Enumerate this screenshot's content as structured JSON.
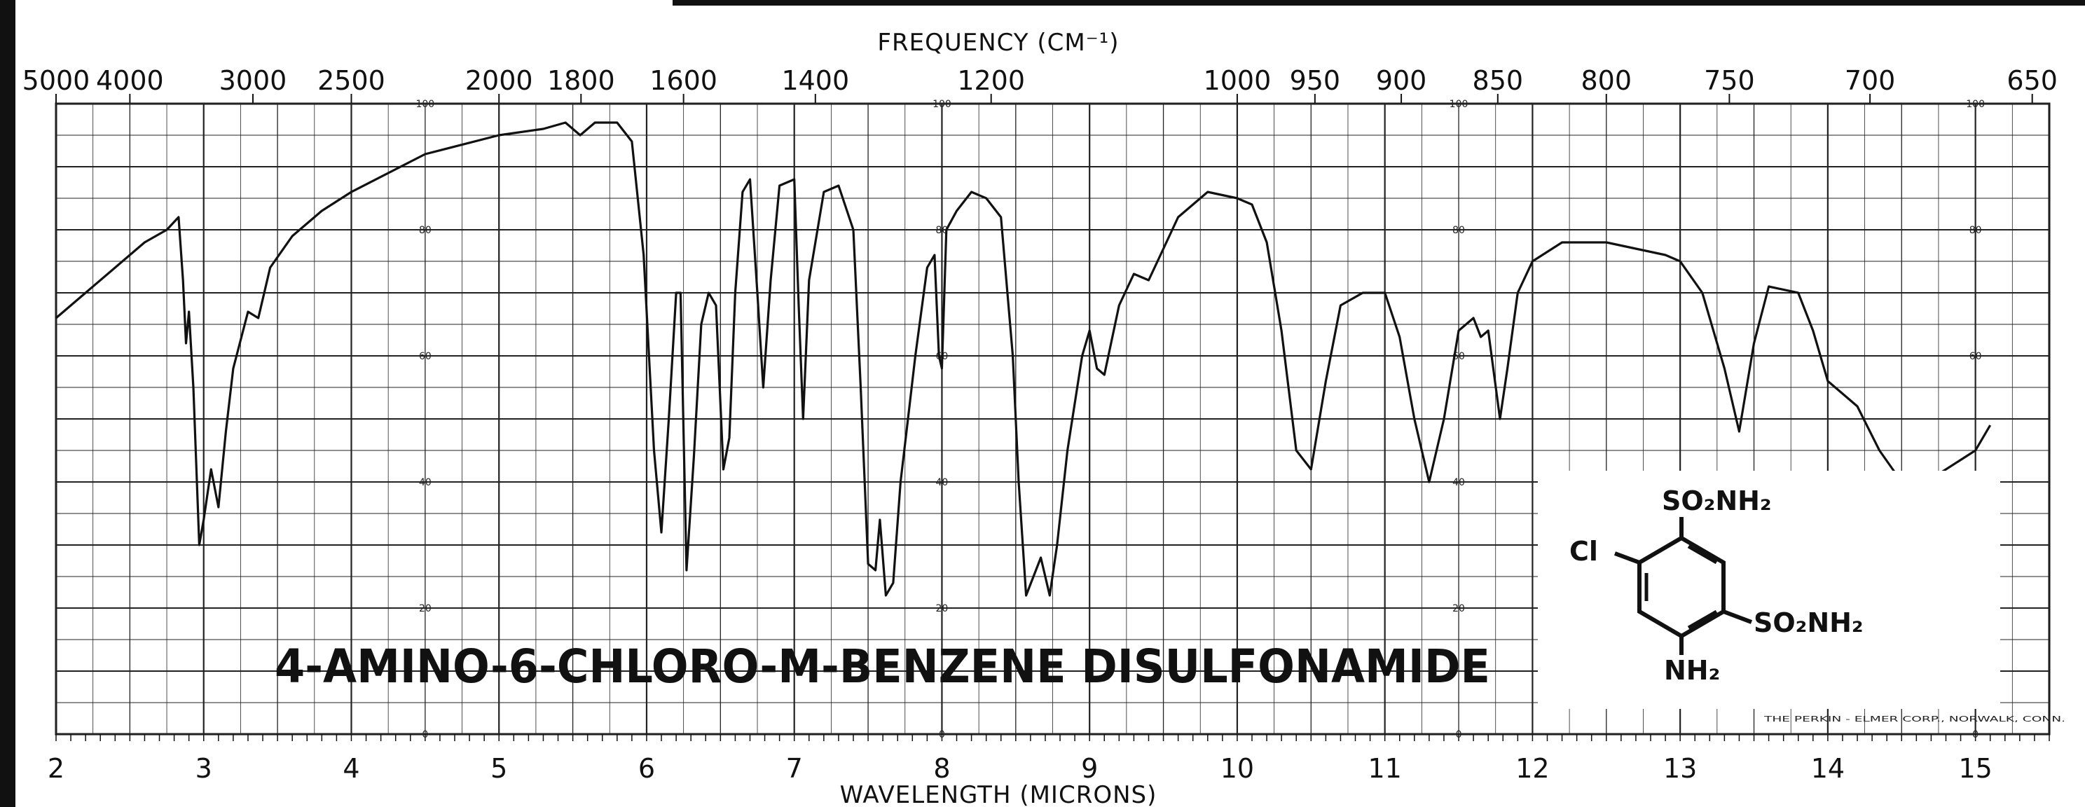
{
  "chart_data": {
    "type": "line",
    "title": "4-AMINO-6-CHLORO-M-BENZENE  DISULFONAMIDE",
    "xlabel": "WAVELENGTH (MICRONS)",
    "x2label": "FREQUENCY (CM⁻¹)",
    "xlim": [
      2,
      15.5
    ],
    "ylim": [
      0,
      100
    ],
    "x_ticks": [
      "2",
      "3",
      "4",
      "5",
      "6",
      "7",
      "8",
      "9",
      "10",
      "11",
      "12",
      "13",
      "14",
      "15"
    ],
    "freq_ticks": [
      "5000",
      "4000",
      "3000",
      "2500",
      "2000",
      "1800",
      "1600",
      "1400",
      "1200",
      "1000",
      "950",
      "900",
      "850",
      "800",
      "750",
      "700",
      "650"
    ],
    "y_ticks": [
      "0",
      "20",
      "40",
      "60",
      "80",
      "100"
    ],
    "series": [
      {
        "values": [
          [
            2.0,
            66
          ],
          [
            2.2,
            70
          ],
          [
            2.4,
            74
          ],
          [
            2.6,
            78
          ],
          [
            2.75,
            80
          ],
          [
            2.83,
            82
          ],
          [
            2.86,
            72
          ],
          [
            2.88,
            62
          ],
          [
            2.9,
            67
          ],
          [
            2.93,
            55
          ],
          [
            2.97,
            30
          ],
          [
            3.0,
            34
          ],
          [
            3.05,
            42
          ],
          [
            3.1,
            36
          ],
          [
            3.15,
            48
          ],
          [
            3.2,
            58
          ],
          [
            3.3,
            67
          ],
          [
            3.37,
            66
          ],
          [
            3.45,
            74
          ],
          [
            3.6,
            79
          ],
          [
            3.8,
            83
          ],
          [
            4.0,
            86
          ],
          [
            4.5,
            92
          ],
          [
            5.0,
            95
          ],
          [
            5.3,
            96
          ],
          [
            5.45,
            97
          ],
          [
            5.55,
            95
          ],
          [
            5.65,
            97
          ],
          [
            5.8,
            97
          ],
          [
            5.9,
            94
          ],
          [
            5.98,
            76
          ],
          [
            6.05,
            45
          ],
          [
            6.1,
            32
          ],
          [
            6.15,
            50
          ],
          [
            6.2,
            70
          ],
          [
            6.23,
            70
          ],
          [
            6.27,
            26
          ],
          [
            6.32,
            44
          ],
          [
            6.37,
            65
          ],
          [
            6.42,
            70
          ],
          [
            6.47,
            68
          ],
          [
            6.52,
            42
          ],
          [
            6.56,
            47
          ],
          [
            6.6,
            70
          ],
          [
            6.65,
            86
          ],
          [
            6.7,
            88
          ],
          [
            6.75,
            70
          ],
          [
            6.79,
            55
          ],
          [
            6.84,
            72
          ],
          [
            6.9,
            87
          ],
          [
            7.0,
            88
          ],
          [
            7.03,
            68
          ],
          [
            7.06,
            50
          ],
          [
            7.1,
            72
          ],
          [
            7.2,
            86
          ],
          [
            7.3,
            87
          ],
          [
            7.4,
            80
          ],
          [
            7.45,
            55
          ],
          [
            7.5,
            27
          ],
          [
            7.55,
            26
          ],
          [
            7.58,
            34
          ],
          [
            7.62,
            22
          ],
          [
            7.67,
            24
          ],
          [
            7.72,
            40
          ],
          [
            7.77,
            50
          ],
          [
            7.82,
            60
          ],
          [
            7.9,
            74
          ],
          [
            7.95,
            76
          ],
          [
            7.98,
            60
          ],
          [
            8.0,
            58
          ],
          [
            8.03,
            80
          ],
          [
            8.1,
            83
          ],
          [
            8.2,
            86
          ],
          [
            8.3,
            85
          ],
          [
            8.4,
            82
          ],
          [
            8.48,
            60
          ],
          [
            8.52,
            40
          ],
          [
            8.57,
            22
          ],
          [
            8.62,
            25
          ],
          [
            8.67,
            28
          ],
          [
            8.73,
            22
          ],
          [
            8.78,
            30
          ],
          [
            8.85,
            45
          ],
          [
            8.95,
            60
          ],
          [
            9.0,
            64
          ],
          [
            9.05,
            58
          ],
          [
            9.1,
            57
          ],
          [
            9.2,
            68
          ],
          [
            9.3,
            73
          ],
          [
            9.4,
            72
          ],
          [
            9.5,
            77
          ],
          [
            9.6,
            82
          ],
          [
            9.8,
            86
          ],
          [
            10.0,
            85
          ],
          [
            10.1,
            84
          ],
          [
            10.2,
            78
          ],
          [
            10.3,
            64
          ],
          [
            10.4,
            45
          ],
          [
            10.5,
            42
          ],
          [
            10.6,
            56
          ],
          [
            10.7,
            68
          ],
          [
            10.85,
            70
          ],
          [
            11.0,
            70
          ],
          [
            11.1,
            63
          ],
          [
            11.2,
            50
          ],
          [
            11.3,
            40
          ],
          [
            11.4,
            50
          ],
          [
            11.5,
            64
          ],
          [
            11.6,
            66
          ],
          [
            11.65,
            63
          ],
          [
            11.7,
            64
          ],
          [
            11.78,
            50
          ],
          [
            11.83,
            58
          ],
          [
            11.9,
            70
          ],
          [
            12.0,
            75
          ],
          [
            12.2,
            78
          ],
          [
            12.5,
            78
          ],
          [
            12.7,
            77
          ],
          [
            12.9,
            76
          ],
          [
            13.0,
            75
          ],
          [
            13.15,
            70
          ],
          [
            13.3,
            58
          ],
          [
            13.4,
            48
          ],
          [
            13.5,
            62
          ],
          [
            13.6,
            71
          ],
          [
            13.8,
            70
          ],
          [
            13.9,
            64
          ],
          [
            14.0,
            56
          ],
          [
            14.1,
            54
          ],
          [
            14.2,
            52
          ],
          [
            14.35,
            45
          ],
          [
            14.5,
            40
          ],
          [
            14.6,
            39
          ],
          [
            14.8,
            42
          ],
          [
            15.0,
            45
          ],
          [
            15.1,
            49
          ]
        ]
      }
    ],
    "structure": {
      "substituents": [
        "SO₂NH₂",
        "Cl",
        "SO₂NH₂",
        "NH₂"
      ]
    },
    "credit": "THE PERKIN - ELMER CORP., NORWALK, CONN."
  }
}
